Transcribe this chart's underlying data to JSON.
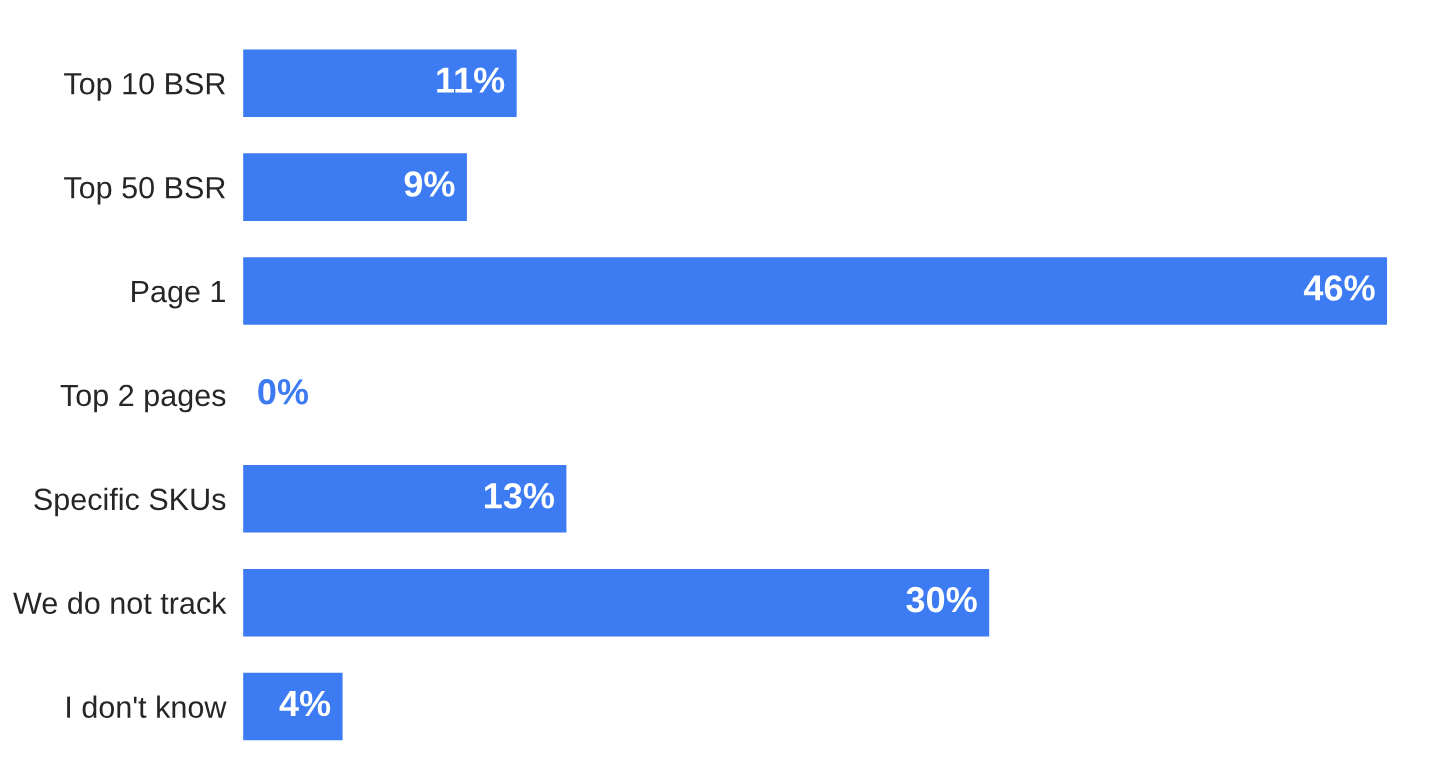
{
  "chart_data": {
    "type": "bar",
    "orientation": "horizontal",
    "categories": [
      "Top 10 BSR",
      "Top 50 BSR",
      "Page 1",
      "Top 2 pages",
      "Specific SKUs",
      "We do not track",
      "I don't know"
    ],
    "values": [
      11,
      9,
      46,
      0,
      13,
      30,
      4
    ],
    "value_labels": [
      "11%",
      "9%",
      "46%",
      "0%",
      "13%",
      "30%",
      "4%"
    ],
    "color": "#3d7bf2"
  }
}
